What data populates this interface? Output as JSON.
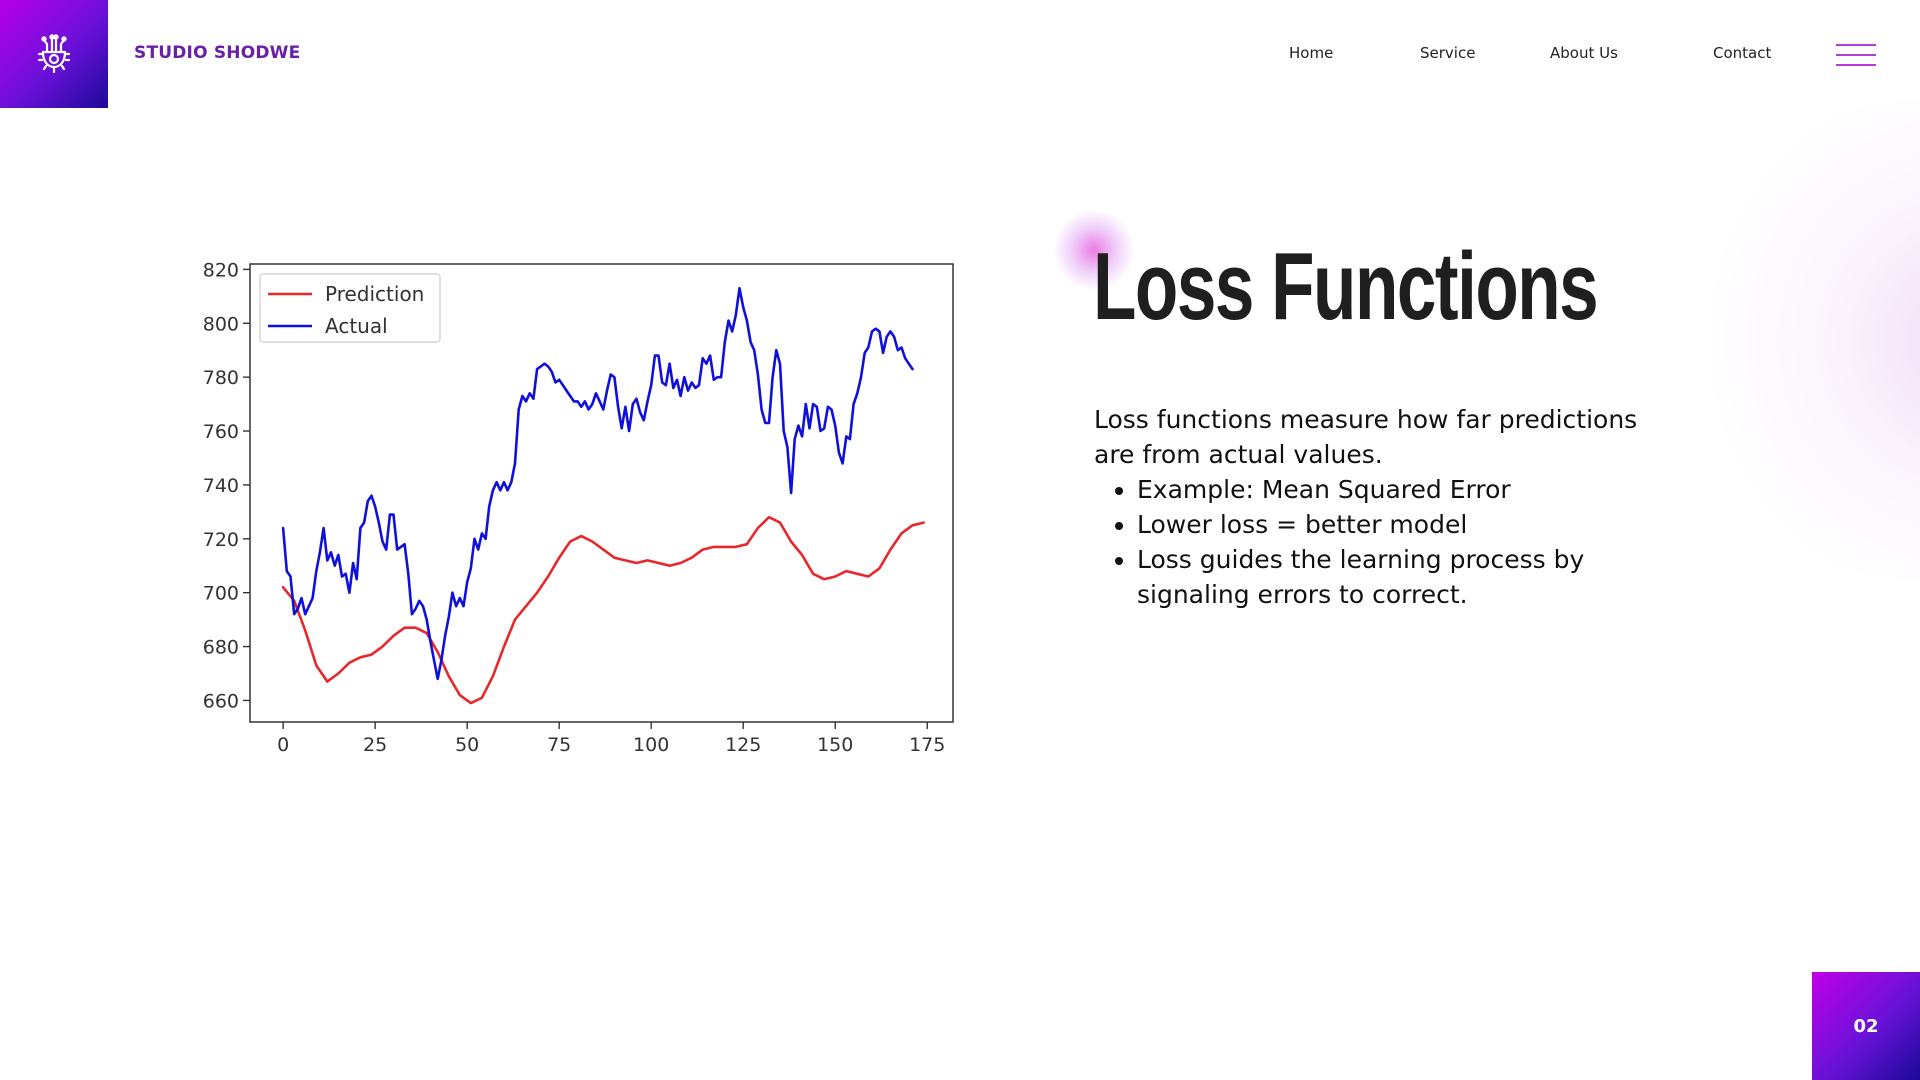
{
  "header": {
    "brand": "STUDIO SHODWE",
    "logo_icon": "gear-circuit-icon",
    "nav": [
      "Home",
      "Service",
      "About Us",
      "Contact"
    ],
    "menu_icon": "hamburger-menu-icon"
  },
  "main": {
    "title": "Loss Functions",
    "intro": "Loss functions measure how far predictions are from actual values.",
    "bullets": [
      "Example: Mean Squared Error",
      "Lower loss = better model",
      "Loss guides the learning process by signaling errors to correct."
    ]
  },
  "footer": {
    "page_number": "02"
  },
  "colors": {
    "accent_purple": "#6a1fa8",
    "gradient_start": "#b700e8",
    "gradient_end": "#1c0a9a",
    "prediction_line": "#e8272b",
    "actual_line": "#1010dd"
  },
  "chart_data": {
    "type": "line",
    "title": "",
    "xlabel": "",
    "ylabel": "",
    "xlim": [
      -9,
      182
    ],
    "ylim": [
      652,
      822
    ],
    "x_ticks": [
      0,
      25,
      50,
      75,
      100,
      125,
      150,
      175
    ],
    "y_ticks": [
      660,
      680,
      700,
      720,
      740,
      760,
      780,
      800,
      820
    ],
    "legend": "top-left",
    "grid": false,
    "series": [
      {
        "name": "Prediction",
        "color": "#e8272b",
        "points": [
          [
            0,
            702
          ],
          [
            3,
            697
          ],
          [
            6,
            686
          ],
          [
            9,
            673
          ],
          [
            12,
            667
          ],
          [
            15,
            670
          ],
          [
            18,
            674
          ],
          [
            21,
            676
          ],
          [
            24,
            677
          ],
          [
            27,
            680
          ],
          [
            30,
            684
          ],
          [
            33,
            687
          ],
          [
            36,
            687
          ],
          [
            39,
            685
          ],
          [
            42,
            678
          ],
          [
            45,
            669
          ],
          [
            48,
            662
          ],
          [
            51,
            659
          ],
          [
            54,
            661
          ],
          [
            57,
            669
          ],
          [
            60,
            680
          ],
          [
            63,
            690
          ],
          [
            66,
            695
          ],
          [
            69,
            700
          ],
          [
            72,
            706
          ],
          [
            75,
            713
          ],
          [
            78,
            719
          ],
          [
            81,
            721
          ],
          [
            84,
            719
          ],
          [
            87,
            716
          ],
          [
            90,
            713
          ],
          [
            93,
            712
          ],
          [
            96,
            711
          ],
          [
            99,
            712
          ],
          [
            102,
            711
          ],
          [
            105,
            710
          ],
          [
            108,
            711
          ],
          [
            111,
            713
          ],
          [
            114,
            716
          ],
          [
            117,
            717
          ],
          [
            120,
            717
          ],
          [
            123,
            717
          ],
          [
            126,
            718
          ],
          [
            129,
            724
          ],
          [
            132,
            728
          ],
          [
            135,
            726
          ],
          [
            138,
            719
          ],
          [
            141,
            714
          ],
          [
            144,
            707
          ],
          [
            147,
            705
          ],
          [
            150,
            706
          ],
          [
            153,
            708
          ],
          [
            156,
            707
          ],
          [
            159,
            706
          ],
          [
            162,
            709
          ],
          [
            165,
            716
          ],
          [
            168,
            722
          ],
          [
            171,
            725
          ],
          [
            174,
            726
          ]
        ]
      },
      {
        "name": "Actual",
        "color": "#1010dd",
        "points": [
          [
            0,
            724
          ],
          [
            1,
            708
          ],
          [
            2,
            706
          ],
          [
            3,
            692
          ],
          [
            4,
            694
          ],
          [
            5,
            698
          ],
          [
            6,
            692
          ],
          [
            7,
            695
          ],
          [
            8,
            698
          ],
          [
            9,
            708
          ],
          [
            10,
            715
          ],
          [
            11,
            724
          ],
          [
            12,
            712
          ],
          [
            13,
            715
          ],
          [
            14,
            710
          ],
          [
            15,
            714
          ],
          [
            16,
            706
          ],
          [
            17,
            707
          ],
          [
            18,
            700
          ],
          [
            19,
            711
          ],
          [
            20,
            705
          ],
          [
            21,
            724
          ],
          [
            22,
            726
          ],
          [
            23,
            734
          ],
          [
            24,
            736
          ],
          [
            25,
            732
          ],
          [
            26,
            726
          ],
          [
            27,
            719
          ],
          [
            28,
            716
          ],
          [
            29,
            729
          ],
          [
            30,
            729
          ],
          [
            31,
            716
          ],
          [
            32,
            717
          ],
          [
            33,
            718
          ],
          [
            34,
            707
          ],
          [
            35,
            692
          ],
          [
            36,
            694
          ],
          [
            37,
            697
          ],
          [
            38,
            695
          ],
          [
            39,
            690
          ],
          [
            40,
            682
          ],
          [
            41,
            675
          ],
          [
            42,
            668
          ],
          [
            43,
            675
          ],
          [
            44,
            684
          ],
          [
            45,
            691
          ],
          [
            46,
            700
          ],
          [
            47,
            695
          ],
          [
            48,
            698
          ],
          [
            49,
            695
          ],
          [
            50,
            704
          ],
          [
            51,
            709
          ],
          [
            52,
            720
          ],
          [
            53,
            716
          ],
          [
            54,
            722
          ],
          [
            55,
            720
          ],
          [
            56,
            732
          ],
          [
            57,
            738
          ],
          [
            58,
            741
          ],
          [
            59,
            738
          ],
          [
            60,
            741
          ],
          [
            61,
            738
          ],
          [
            62,
            741
          ],
          [
            63,
            748
          ],
          [
            64,
            768
          ],
          [
            65,
            773
          ],
          [
            66,
            771
          ],
          [
            67,
            774
          ],
          [
            68,
            772
          ],
          [
            69,
            783
          ],
          [
            70,
            784
          ],
          [
            71,
            785
          ],
          [
            72,
            784
          ],
          [
            73,
            782
          ],
          [
            74,
            778
          ],
          [
            75,
            779
          ],
          [
            76,
            777
          ],
          [
            77,
            775
          ],
          [
            78,
            773
          ],
          [
            79,
            771
          ],
          [
            80,
            771
          ],
          [
            81,
            769
          ],
          [
            82,
            771
          ],
          [
            83,
            768
          ],
          [
            84,
            770
          ],
          [
            85,
            774
          ],
          [
            86,
            771
          ],
          [
            87,
            768
          ],
          [
            88,
            775
          ],
          [
            89,
            781
          ],
          [
            90,
            780
          ],
          [
            91,
            769
          ],
          [
            92,
            761
          ],
          [
            93,
            769
          ],
          [
            94,
            760
          ],
          [
            95,
            770
          ],
          [
            96,
            772
          ],
          [
            97,
            767
          ],
          [
            98,
            764
          ],
          [
            99,
            771
          ],
          [
            100,
            777
          ],
          [
            101,
            788
          ],
          [
            102,
            788
          ],
          [
            103,
            778
          ],
          [
            104,
            777
          ],
          [
            105,
            785
          ],
          [
            106,
            776
          ],
          [
            107,
            779
          ],
          [
            108,
            773
          ],
          [
            109,
            780
          ],
          [
            110,
            775
          ],
          [
            111,
            778
          ],
          [
            112,
            776
          ],
          [
            113,
            777
          ],
          [
            114,
            787
          ],
          [
            115,
            785
          ],
          [
            116,
            788
          ],
          [
            117,
            779
          ],
          [
            118,
            780
          ],
          [
            119,
            780
          ],
          [
            120,
            793
          ],
          [
            121,
            801
          ],
          [
            122,
            797
          ],
          [
            123,
            803
          ],
          [
            124,
            813
          ],
          [
            125,
            806
          ],
          [
            126,
            801
          ],
          [
            127,
            793
          ],
          [
            128,
            790
          ],
          [
            129,
            781
          ],
          [
            130,
            768
          ],
          [
            131,
            763
          ],
          [
            132,
            763
          ],
          [
            133,
            780
          ],
          [
            134,
            790
          ],
          [
            135,
            785
          ],
          [
            136,
            760
          ],
          [
            137,
            754
          ],
          [
            138,
            737
          ],
          [
            139,
            757
          ],
          [
            140,
            762
          ],
          [
            141,
            758
          ],
          [
            142,
            770
          ],
          [
            143,
            761
          ],
          [
            144,
            770
          ],
          [
            145,
            769
          ],
          [
            146,
            760
          ],
          [
            147,
            761
          ],
          [
            148,
            769
          ],
          [
            149,
            768
          ],
          [
            150,
            762
          ],
          [
            151,
            752
          ],
          [
            152,
            748
          ],
          [
            153,
            758
          ],
          [
            154,
            757
          ],
          [
            155,
            770
          ],
          [
            156,
            774
          ],
          [
            157,
            780
          ],
          [
            158,
            789
          ],
          [
            159,
            791
          ],
          [
            160,
            797
          ],
          [
            161,
            798
          ],
          [
            162,
            797
          ],
          [
            163,
            789
          ],
          [
            164,
            795
          ],
          [
            165,
            797
          ],
          [
            166,
            795
          ],
          [
            167,
            790
          ],
          [
            168,
            791
          ],
          [
            169,
            787
          ],
          [
            170,
            785
          ],
          [
            171,
            783
          ]
        ]
      }
    ]
  }
}
